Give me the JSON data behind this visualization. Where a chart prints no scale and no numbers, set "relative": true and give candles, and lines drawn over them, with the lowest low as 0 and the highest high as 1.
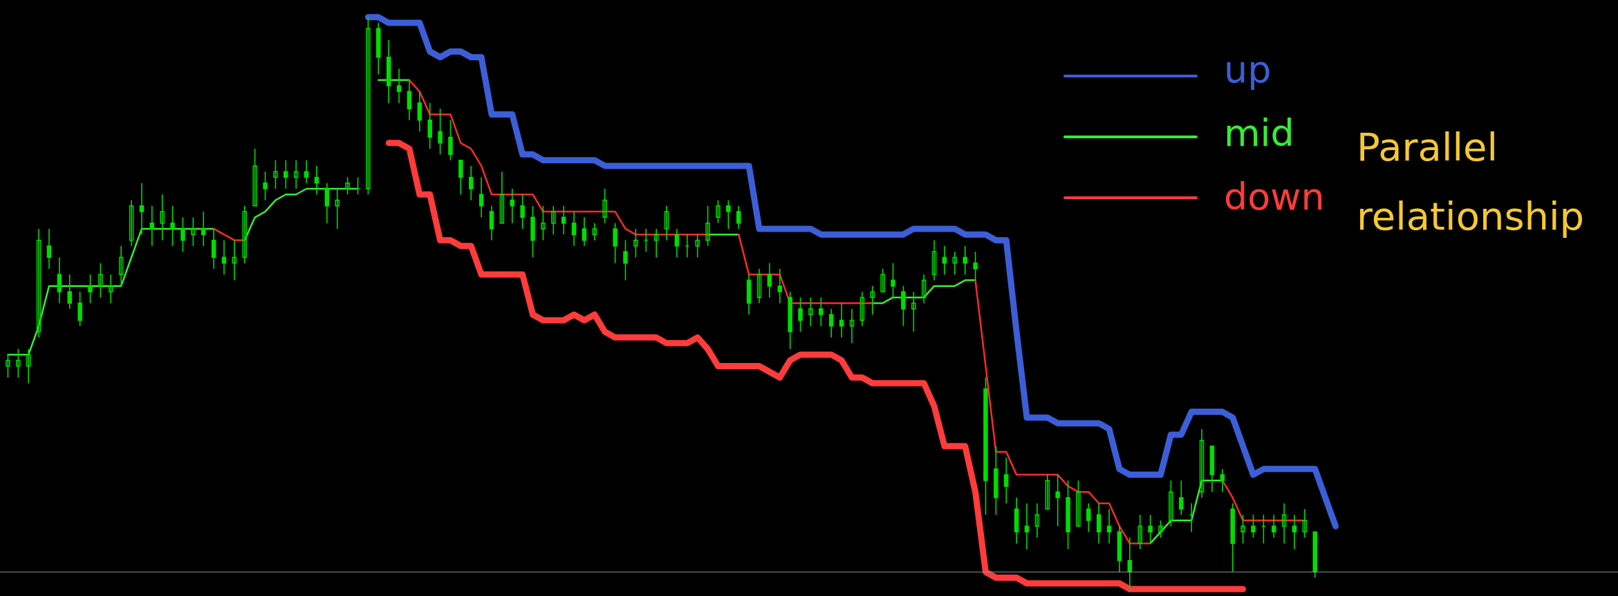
{
  "chart_data": {
    "type": "candlestick",
    "relative": true,
    "color": "#00dd00",
    "legend": "top right",
    "line_style": "solid",
    "categories": [
      null,
      null,
      null,
      null,
      null,
      null,
      null,
      null,
      null,
      null,
      null,
      null,
      null,
      null,
      null,
      null,
      null,
      null,
      null,
      null,
      null,
      null,
      null,
      null,
      null,
      null,
      null,
      null,
      null,
      null,
      null,
      null,
      null,
      null,
      null,
      null,
      null,
      null,
      null,
      null,
      null,
      null,
      null,
      null,
      null,
      null,
      null,
      null,
      null,
      null,
      null,
      null,
      null,
      null,
      null,
      null,
      null,
      null,
      null,
      null,
      null,
      null,
      null,
      null,
      null,
      null,
      null,
      null,
      null,
      null,
      null,
      null,
      null,
      null,
      null,
      null,
      null,
      null,
      null,
      null,
      null,
      null,
      null,
      null,
      null,
      null,
      null,
      null,
      null,
      null,
      null,
      null,
      null,
      null,
      null,
      null,
      null,
      null,
      null,
      null,
      null,
      null,
      null,
      null,
      null,
      null,
      null,
      null,
      null,
      null,
      null,
      null,
      null,
      null,
      null,
      null,
      null,
      null,
      null,
      null,
      null,
      null,
      null,
      null,
      null,
      null,
      null,
      null,
      null,
      null
    ],
    "ohlc": [
      [
        0.39,
        0.41,
        0.37,
        0.4
      ],
      [
        0.39,
        0.42,
        0.37,
        0.4
      ],
      [
        0.39,
        0.42,
        0.36,
        0.41
      ],
      [
        0.45,
        0.63,
        0.44,
        0.61
      ],
      [
        0.6,
        0.63,
        0.56,
        0.58
      ],
      [
        0.55,
        0.58,
        0.5,
        0.52
      ],
      [
        0.52,
        0.55,
        0.49,
        0.5
      ],
      [
        0.5,
        0.52,
        0.46,
        0.47
      ],
      [
        0.53,
        0.55,
        0.5,
        0.52
      ],
      [
        0.53,
        0.57,
        0.51,
        0.55
      ],
      [
        0.52,
        0.55,
        0.5,
        0.53
      ],
      [
        0.55,
        0.6,
        0.53,
        0.58
      ],
      [
        0.61,
        0.68,
        0.6,
        0.67
      ],
      [
        0.67,
        0.71,
        0.62,
        0.66
      ],
      [
        0.64,
        0.67,
        0.6,
        0.63
      ],
      [
        0.64,
        0.69,
        0.61,
        0.66
      ],
      [
        0.64,
        0.67,
        0.6,
        0.63
      ],
      [
        0.63,
        0.65,
        0.59,
        0.61
      ],
      [
        0.62,
        0.65,
        0.6,
        0.63
      ],
      [
        0.63,
        0.66,
        0.6,
        0.62
      ],
      [
        0.61,
        0.63,
        0.56,
        0.58
      ],
      [
        0.58,
        0.61,
        0.55,
        0.57
      ],
      [
        0.57,
        0.61,
        0.54,
        0.58
      ],
      [
        0.58,
        0.67,
        0.57,
        0.66
      ],
      [
        0.67,
        0.77,
        0.67,
        0.74
      ],
      [
        0.71,
        0.73,
        0.68,
        0.7
      ],
      [
        0.72,
        0.75,
        0.7,
        0.73
      ],
      [
        0.73,
        0.75,
        0.7,
        0.72
      ],
      [
        0.72,
        0.75,
        0.7,
        0.73
      ],
      [
        0.73,
        0.75,
        0.71,
        0.72
      ],
      [
        0.72,
        0.74,
        0.69,
        0.71
      ],
      [
        0.7,
        0.71,
        0.64,
        0.67
      ],
      [
        0.67,
        0.7,
        0.63,
        0.68
      ],
      [
        0.7,
        0.72,
        0.69,
        0.71
      ],
      [
        0.7,
        0.72,
        0.69,
        0.7
      ],
      [
        0.7,
        1.0,
        0.69,
        0.98
      ],
      [
        0.98,
        0.99,
        0.9,
        0.93
      ],
      [
        0.93,
        0.96,
        0.85,
        0.88
      ],
      [
        0.88,
        0.91,
        0.85,
        0.87
      ],
      [
        0.87,
        0.89,
        0.82,
        0.84
      ],
      [
        0.85,
        0.87,
        0.8,
        0.82
      ],
      [
        0.82,
        0.85,
        0.77,
        0.79
      ],
      [
        0.8,
        0.84,
        0.76,
        0.78
      ],
      [
        0.79,
        0.82,
        0.75,
        0.76
      ],
      [
        0.75,
        0.75,
        0.69,
        0.72
      ],
      [
        0.72,
        0.74,
        0.68,
        0.7
      ],
      [
        0.69,
        0.72,
        0.65,
        0.67
      ],
      [
        0.66,
        0.67,
        0.61,
        0.63
      ],
      [
        0.64,
        0.73,
        0.64,
        0.69
      ],
      [
        0.68,
        0.7,
        0.64,
        0.67
      ],
      [
        0.67,
        0.69,
        0.63,
        0.65
      ],
      [
        0.65,
        0.67,
        0.58,
        0.61
      ],
      [
        0.63,
        0.67,
        0.61,
        0.64
      ],
      [
        0.64,
        0.67,
        0.62,
        0.66
      ],
      [
        0.65,
        0.67,
        0.62,
        0.64
      ],
      [
        0.64,
        0.66,
        0.6,
        0.62
      ],
      [
        0.63,
        0.65,
        0.6,
        0.61
      ],
      [
        0.62,
        0.64,
        0.61,
        0.63
      ],
      [
        0.65,
        0.7,
        0.64,
        0.68
      ],
      [
        0.63,
        0.64,
        0.57,
        0.6
      ],
      [
        0.59,
        0.61,
        0.54,
        0.57
      ],
      [
        0.6,
        0.63,
        0.58,
        0.61
      ],
      [
        0.61,
        0.63,
        0.59,
        0.61
      ],
      [
        0.61,
        0.63,
        0.58,
        0.62
      ],
      [
        0.63,
        0.67,
        0.61,
        0.66
      ],
      [
        0.62,
        0.63,
        0.58,
        0.6
      ],
      [
        0.6,
        0.62,
        0.58,
        0.6
      ],
      [
        0.6,
        0.62,
        0.58,
        0.61
      ],
      [
        0.61,
        0.67,
        0.6,
        0.64
      ],
      [
        0.65,
        0.68,
        0.64,
        0.67
      ],
      [
        0.67,
        0.68,
        0.63,
        0.66
      ],
      [
        0.66,
        0.67,
        0.63,
        0.64
      ],
      [
        0.54,
        0.55,
        0.48,
        0.5
      ],
      [
        0.51,
        0.56,
        0.5,
        0.55
      ],
      [
        0.55,
        0.57,
        0.51,
        0.53
      ],
      [
        0.53,
        0.56,
        0.5,
        0.52
      ],
      [
        0.51,
        0.52,
        0.42,
        0.45
      ],
      [
        0.49,
        0.51,
        0.45,
        0.47
      ],
      [
        0.48,
        0.51,
        0.46,
        0.49
      ],
      [
        0.49,
        0.51,
        0.46,
        0.48
      ],
      [
        0.48,
        0.49,
        0.44,
        0.46
      ],
      [
        0.47,
        0.5,
        0.44,
        0.46
      ],
      [
        0.46,
        0.49,
        0.43,
        0.47
      ],
      [
        0.47,
        0.52,
        0.46,
        0.51
      ],
      [
        0.51,
        0.53,
        0.48,
        0.52
      ],
      [
        0.52,
        0.56,
        0.52,
        0.55
      ],
      [
        0.54,
        0.57,
        0.51,
        0.53
      ],
      [
        0.52,
        0.53,
        0.46,
        0.49
      ],
      [
        0.49,
        0.52,
        0.45,
        0.5
      ],
      [
        0.51,
        0.55,
        0.5,
        0.54
      ],
      [
        0.55,
        0.61,
        0.54,
        0.59
      ],
      [
        0.58,
        0.6,
        0.55,
        0.57
      ],
      [
        0.57,
        0.59,
        0.55,
        0.58
      ],
      [
        0.58,
        0.6,
        0.55,
        0.57
      ],
      [
        0.57,
        0.59,
        0.54,
        0.56
      ],
      [
        0.35,
        0.37,
        0.13,
        0.19
      ],
      [
        0.21,
        0.25,
        0.13,
        0.16
      ],
      [
        0.2,
        0.23,
        0.15,
        0.18
      ],
      [
        0.14,
        0.16,
        0.08,
        0.1
      ],
      [
        0.11,
        0.15,
        0.07,
        0.1
      ],
      [
        0.11,
        0.15,
        0.09,
        0.13
      ],
      [
        0.14,
        0.2,
        0.14,
        0.19
      ],
      [
        0.17,
        0.2,
        0.11,
        0.16
      ],
      [
        0.16,
        0.19,
        0.07,
        0.1
      ],
      [
        0.11,
        0.19,
        0.11,
        0.17
      ],
      [
        0.14,
        0.15,
        0.1,
        0.12
      ],
      [
        0.13,
        0.15,
        0.08,
        0.1
      ],
      [
        0.11,
        0.14,
        0.08,
        0.1
      ],
      [
        0.1,
        0.11,
        0.03,
        0.05
      ],
      [
        0.05,
        0.09,
        0.0,
        0.03
      ],
      [
        0.08,
        0.13,
        0.07,
        0.11
      ],
      [
        0.11,
        0.13,
        0.08,
        0.1
      ],
      [
        0.1,
        0.12,
        0.09,
        0.11
      ],
      [
        0.12,
        0.19,
        0.11,
        0.17
      ],
      [
        0.16,
        0.19,
        0.13,
        0.14
      ],
      [
        0.13,
        0.15,
        0.1,
        0.13
      ],
      [
        0.17,
        0.28,
        0.16,
        0.26
      ],
      [
        0.25,
        0.25,
        0.17,
        0.2
      ],
      [
        0.2,
        0.21,
        0.17,
        0.19
      ],
      [
        0.14,
        0.15,
        0.03,
        0.08
      ],
      [
        0.1,
        0.13,
        0.08,
        0.11
      ],
      [
        0.11,
        0.13,
        0.09,
        0.1
      ],
      [
        0.11,
        0.13,
        0.08,
        0.11
      ],
      [
        0.11,
        0.13,
        0.09,
        0.1
      ],
      [
        0.11,
        0.15,
        0.08,
        0.13
      ],
      [
        0.11,
        0.13,
        0.07,
        0.1
      ],
      [
        0.1,
        0.14,
        0.09,
        0.12
      ],
      [
        0.1,
        0.1,
        0.02,
        0.03
      ],
      null,
      null
    ],
    "series": [
      {
        "name": "up",
        "type": "line",
        "color": "#3c5fd8",
        "values": [
          null,
          null,
          null,
          null,
          null,
          null,
          null,
          null,
          null,
          null,
          null,
          null,
          null,
          null,
          null,
          null,
          null,
          null,
          null,
          null,
          null,
          null,
          null,
          null,
          null,
          null,
          null,
          null,
          null,
          null,
          null,
          null,
          null,
          null,
          null,
          1.0,
          1.0,
          0.99,
          0.99,
          0.99,
          0.99,
          0.94,
          0.93,
          0.94,
          0.94,
          0.93,
          0.93,
          0.83,
          0.83,
          0.83,
          0.76,
          0.76,
          0.75,
          0.75,
          0.75,
          0.75,
          0.75,
          0.75,
          0.74,
          0.74,
          0.74,
          0.74,
          0.74,
          0.74,
          0.74,
          0.74,
          0.74,
          0.74,
          0.74,
          0.74,
          0.74,
          0.74,
          0.74,
          0.63,
          0.63,
          0.63,
          0.63,
          0.63,
          0.63,
          0.62,
          0.62,
          0.62,
          0.62,
          0.62,
          0.62,
          0.62,
          0.62,
          0.62,
          0.63,
          0.63,
          0.63,
          0.63,
          0.63,
          0.62,
          0.62,
          0.62,
          0.61,
          0.61,
          0.45,
          0.3,
          0.3,
          0.3,
          0.29,
          0.29,
          0.29,
          0.29,
          0.29,
          0.28,
          0.21,
          0.2,
          0.2,
          0.2,
          0.2,
          0.27,
          0.27,
          0.31,
          0.31,
          0.31,
          0.31,
          0.3,
          0.25,
          0.2,
          0.21,
          0.21,
          0.21,
          0.21,
          0.21,
          0.21,
          0.16,
          0.11
        ]
      },
      {
        "name": "mid",
        "type": "line",
        "color": "#33ee33",
        "values": [
          0.41,
          0.41,
          0.41,
          0.46,
          0.53,
          0.53,
          0.53,
          0.53,
          0.53,
          0.53,
          0.53,
          0.53,
          0.58,
          0.63,
          0.63,
          0.63,
          0.63,
          0.63,
          0.63,
          0.63,
          0.63,
          null,
          null,
          0.61,
          0.65,
          0.66,
          0.68,
          0.69,
          0.69,
          0.7,
          0.7,
          0.7,
          0.7,
          0.7,
          0.7,
          null,
          0.89,
          0.89,
          0.89,
          0.89,
          null,
          null,
          null,
          null,
          null,
          null,
          null,
          null,
          null,
          null,
          null,
          null,
          null,
          null,
          null,
          null,
          null,
          null,
          null,
          null,
          null,
          null,
          null,
          null,
          null,
          null,
          null,
          null,
          0.62,
          0.62,
          0.62,
          0.62,
          null,
          null,
          null,
          null,
          null,
          null,
          null,
          null,
          null,
          null,
          null,
          null,
          0.5,
          0.5,
          0.51,
          0.51,
          0.51,
          0.51,
          0.53,
          0.53,
          0.53,
          0.54,
          0.54,
          null,
          null,
          null,
          null,
          null,
          null,
          null,
          null,
          null,
          null,
          null,
          null,
          null,
          null,
          null,
          null,
          0.08,
          0.1,
          0.12,
          0.12,
          0.12,
          0.19,
          0.19,
          0.19,
          null,
          null,
          null,
          null,
          null,
          null,
          null,
          null,
          null,
          null,
          null
        ]
      },
      {
        "type": "line",
        "color": "#ff2a2a",
        "values": [
          null,
          null,
          null,
          null,
          null,
          null,
          null,
          null,
          null,
          null,
          null,
          null,
          null,
          null,
          null,
          null,
          null,
          null,
          null,
          null,
          0.63,
          0.62,
          0.61,
          0.61,
          null,
          null,
          null,
          null,
          null,
          null,
          null,
          null,
          null,
          null,
          null,
          null,
          null,
          null,
          null,
          0.89,
          0.87,
          0.83,
          0.83,
          0.83,
          0.78,
          0.77,
          0.74,
          0.69,
          0.69,
          0.69,
          0.69,
          0.69,
          0.66,
          0.66,
          0.66,
          0.66,
          0.66,
          0.66,
          0.66,
          0.66,
          0.63,
          0.62,
          0.62,
          0.62,
          0.62,
          0.62,
          0.62,
          0.62,
          0.62,
          null,
          null,
          0.62,
          0.55,
          0.55,
          0.55,
          0.55,
          0.5,
          0.5,
          0.5,
          0.5,
          0.5,
          0.5,
          0.5,
          0.5,
          0.5,
          null,
          null,
          null,
          null,
          null,
          null,
          null,
          null,
          null,
          0.54,
          0.39,
          0.24,
          0.24,
          0.2,
          0.2,
          0.2,
          0.2,
          0.2,
          0.18,
          0.17,
          0.17,
          0.15,
          0.15,
          0.11,
          0.08,
          0.08,
          0.08,
          null,
          null,
          null,
          null,
          null,
          null,
          0.19,
          0.16,
          0.12,
          0.12,
          0.12,
          0.12,
          0.12,
          0.12,
          0.12,
          null,
          null,
          null
        ]
      },
      {
        "name": "down",
        "type": "line",
        "color": "#ff3c3c",
        "values": [
          null,
          null,
          null,
          null,
          null,
          null,
          null,
          null,
          null,
          null,
          null,
          null,
          null,
          null,
          null,
          null,
          null,
          null,
          null,
          null,
          null,
          null,
          null,
          null,
          null,
          null,
          null,
          null,
          null,
          null,
          null,
          null,
          null,
          null,
          null,
          null,
          null,
          0.78,
          0.78,
          0.77,
          0.69,
          0.69,
          0.61,
          0.61,
          0.6,
          0.6,
          0.55,
          0.55,
          0.55,
          0.55,
          0.55,
          0.48,
          0.47,
          0.47,
          0.47,
          0.48,
          0.47,
          0.48,
          0.45,
          0.44,
          0.44,
          0.44,
          0.44,
          0.44,
          0.43,
          0.43,
          0.43,
          0.44,
          0.42,
          0.39,
          0.39,
          0.39,
          0.39,
          0.39,
          0.38,
          0.37,
          0.4,
          0.41,
          0.41,
          0.41,
          0.41,
          0.4,
          0.37,
          0.37,
          0.36,
          0.36,
          0.36,
          0.36,
          0.36,
          0.36,
          0.32,
          0.25,
          0.25,
          0.25,
          0.17,
          0.03,
          0.02,
          0.02,
          0.02,
          0.01,
          0.01,
          0.01,
          0.01,
          0.01,
          0.01,
          0.01,
          0.01,
          0.01,
          0.01,
          0.0,
          0.0,
          0.0,
          0.0,
          0.0,
          0.0,
          0.0,
          0.0,
          0.0,
          0.0,
          0.0,
          0.0,
          null,
          null,
          null,
          null,
          null,
          null,
          null,
          null,
          null
        ]
      }
    ],
    "ref_lines": [
      {
        "axis": "y",
        "value": 0.03,
        "color": "#8a96a6"
      }
    ],
    "annotations": [
      "Parallel relationship"
    ]
  }
}
